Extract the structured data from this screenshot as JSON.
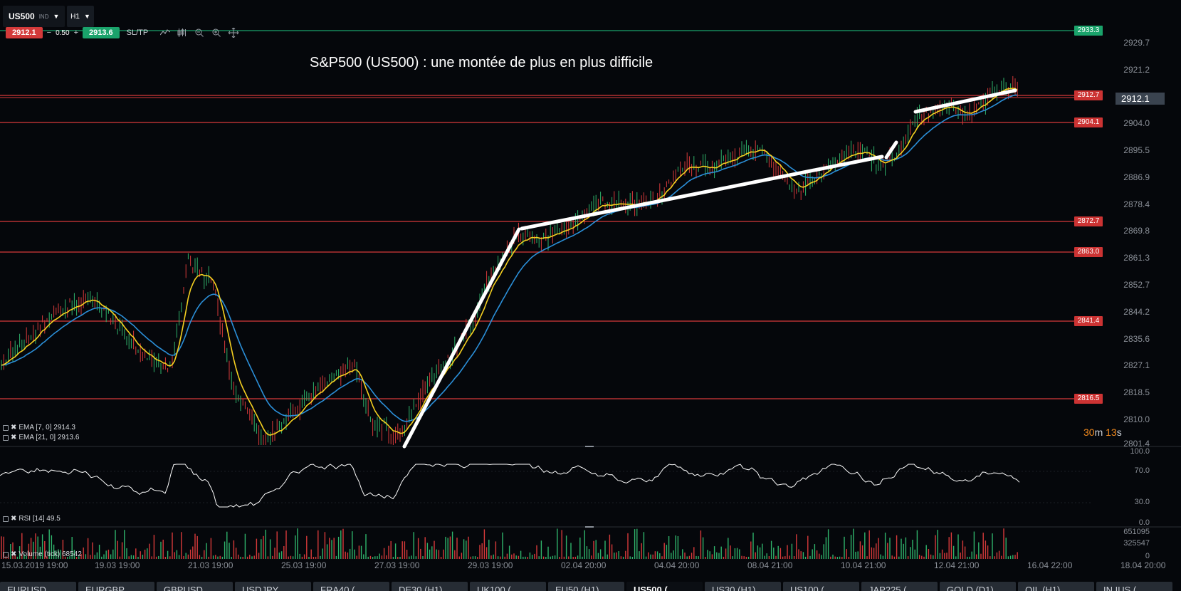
{
  "toolbar": {
    "symbol": "US500",
    "symbol_type": "IND",
    "timeframe": "H1",
    "bid": "2912.1",
    "lot_minus": "−",
    "lot": "0.50",
    "lot_plus": "+",
    "ask": "2913.6",
    "sltp": "SL/TP",
    "tools": [
      "line-chart-icon",
      "candles-settings-icon",
      "zoom-out-icon",
      "zoom-in-icon",
      "move-icon"
    ]
  },
  "chart": {
    "title": "S&P500 (US500) : une montée de plus en plus difficile",
    "y_axis_labels": [
      "2929.7",
      "2921.2",
      "2904.0",
      "2895.5",
      "2886.9",
      "2878.4",
      "2869.8",
      "2861.3",
      "2852.7",
      "2844.2",
      "2835.6",
      "2827.1",
      "2818.5",
      "2810.0",
      "2801.4"
    ],
    "level_tags": [
      {
        "text": "2933.3",
        "style": "green"
      },
      {
        "text": "2912.7",
        "style": "red"
      },
      {
        "text": "2904.1",
        "style": "red"
      },
      {
        "text": "2872.7",
        "style": "red"
      },
      {
        "text": "2863.0",
        "style": "red"
      },
      {
        "text": "2841.4",
        "style": "red"
      },
      {
        "text": "2816.5",
        "style": "red"
      }
    ],
    "current_price": "2912.1",
    "countdown_minutes": "30",
    "countdown_m": "m ",
    "countdown_seconds": "13",
    "countdown_s": "s",
    "legend_ema7": "EMA [7, 0] 2914.3",
    "legend_ema21": "EMA [21, 0] 2913.6",
    "colors": {
      "ema7": "#f5d020",
      "ema21": "#2b8fd8",
      "up": "#2fb36b",
      "down": "#d63a3a",
      "level": "#d63a3a",
      "target": "#1aa36b",
      "trend": "#ffffff"
    }
  },
  "rsi": {
    "legend": "RSI [14] 49.5",
    "axis_labels": [
      "100.0",
      "70.0",
      "30.0",
      "0.0"
    ]
  },
  "volume": {
    "legend": "Volume (tick) 68542",
    "axis_labels": [
      "651095",
      "325547",
      "0"
    ]
  },
  "x_axis": {
    "dates": [
      "15.03.2019 19:00",
      "19.03 19:00",
      "21.03 19:00",
      "25.03 19:00",
      "27.03 19:00",
      "29.03 19:00",
      "02.04 20:00",
      "04.04 20:00",
      "08.04 21:00",
      "10.04 21:00",
      "12.04 21:00",
      "16.04 22:00",
      "18.04 20:00"
    ]
  },
  "tabs": [
    {
      "label": "EURUSD"
    },
    {
      "label": "EURGBP"
    },
    {
      "label": "GBPUSD"
    },
    {
      "label": "USDJPY"
    },
    {
      "label": "FRA40 ("
    },
    {
      "label": "DE30 (H1)"
    },
    {
      "label": "UK100 ("
    },
    {
      "label": "EU50 (H1)"
    },
    {
      "label": "US500 (",
      "active": true
    },
    {
      "label": "US30 (H1)"
    },
    {
      "label": "US100 ("
    },
    {
      "label": "JAP225 ("
    },
    {
      "label": "GOLD (D1)"
    },
    {
      "label": "OIL (H1)"
    },
    {
      "label": "IN.IUS ("
    }
  ]
}
